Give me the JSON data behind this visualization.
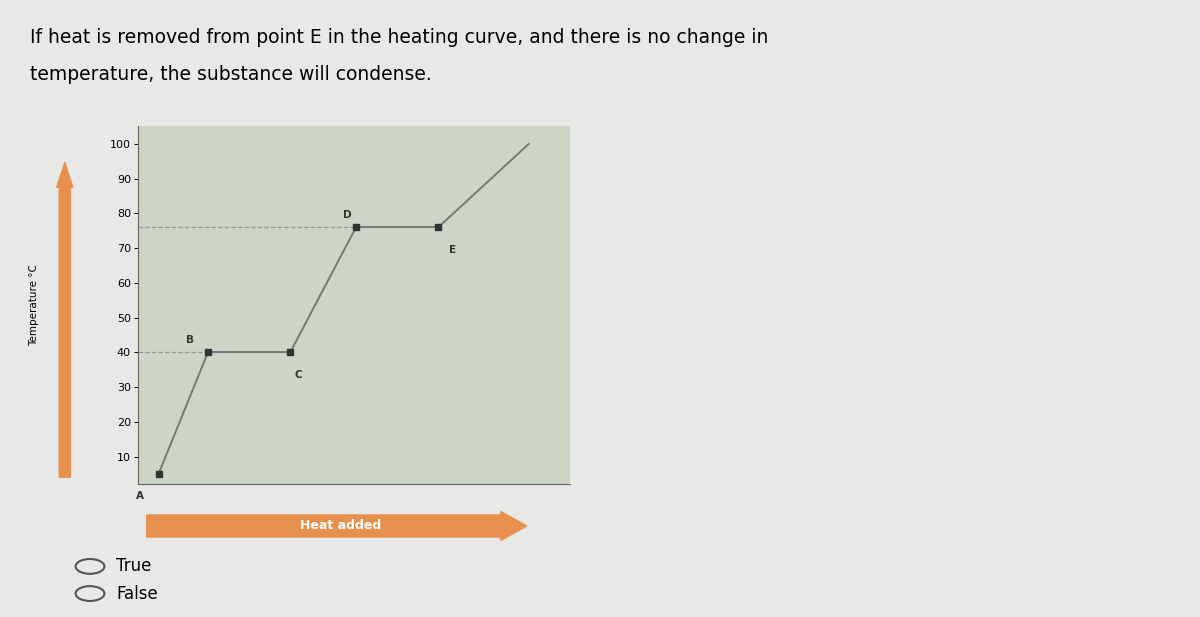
{
  "title_line1": "If heat is removed from point E in the heating curve, and there is no change in",
  "title_line2": "temperature, the substance will condense.",
  "ylabel": "Temperature °C",
  "xlabel_arrow": "Heat added",
  "yticks": [
    10,
    20,
    30,
    40,
    50,
    60,
    70,
    80,
    90,
    100
  ],
  "ylim": [
    2,
    105
  ],
  "curve_points": {
    "A": [
      1.0,
      5
    ],
    "B": [
      2.2,
      40
    ],
    "C": [
      4.2,
      40
    ],
    "D": [
      5.8,
      76
    ],
    "E": [
      7.8,
      76
    ]
  },
  "after_E": [
    10.0,
    100
  ],
  "dashed_line_B": 40,
  "dashed_line_D": 76,
  "bg_color": "#cdd5c6",
  "fig_bg": "#e8e8e6",
  "line_color": "#787878",
  "dashed_color": "#999999",
  "point_color": "#333333",
  "arrow_color": "#e8914e",
  "title_fontsize": 13.5,
  "axis_fontsize": 8,
  "option_fontsize": 12,
  "true_label": "True",
  "false_label": "False"
}
